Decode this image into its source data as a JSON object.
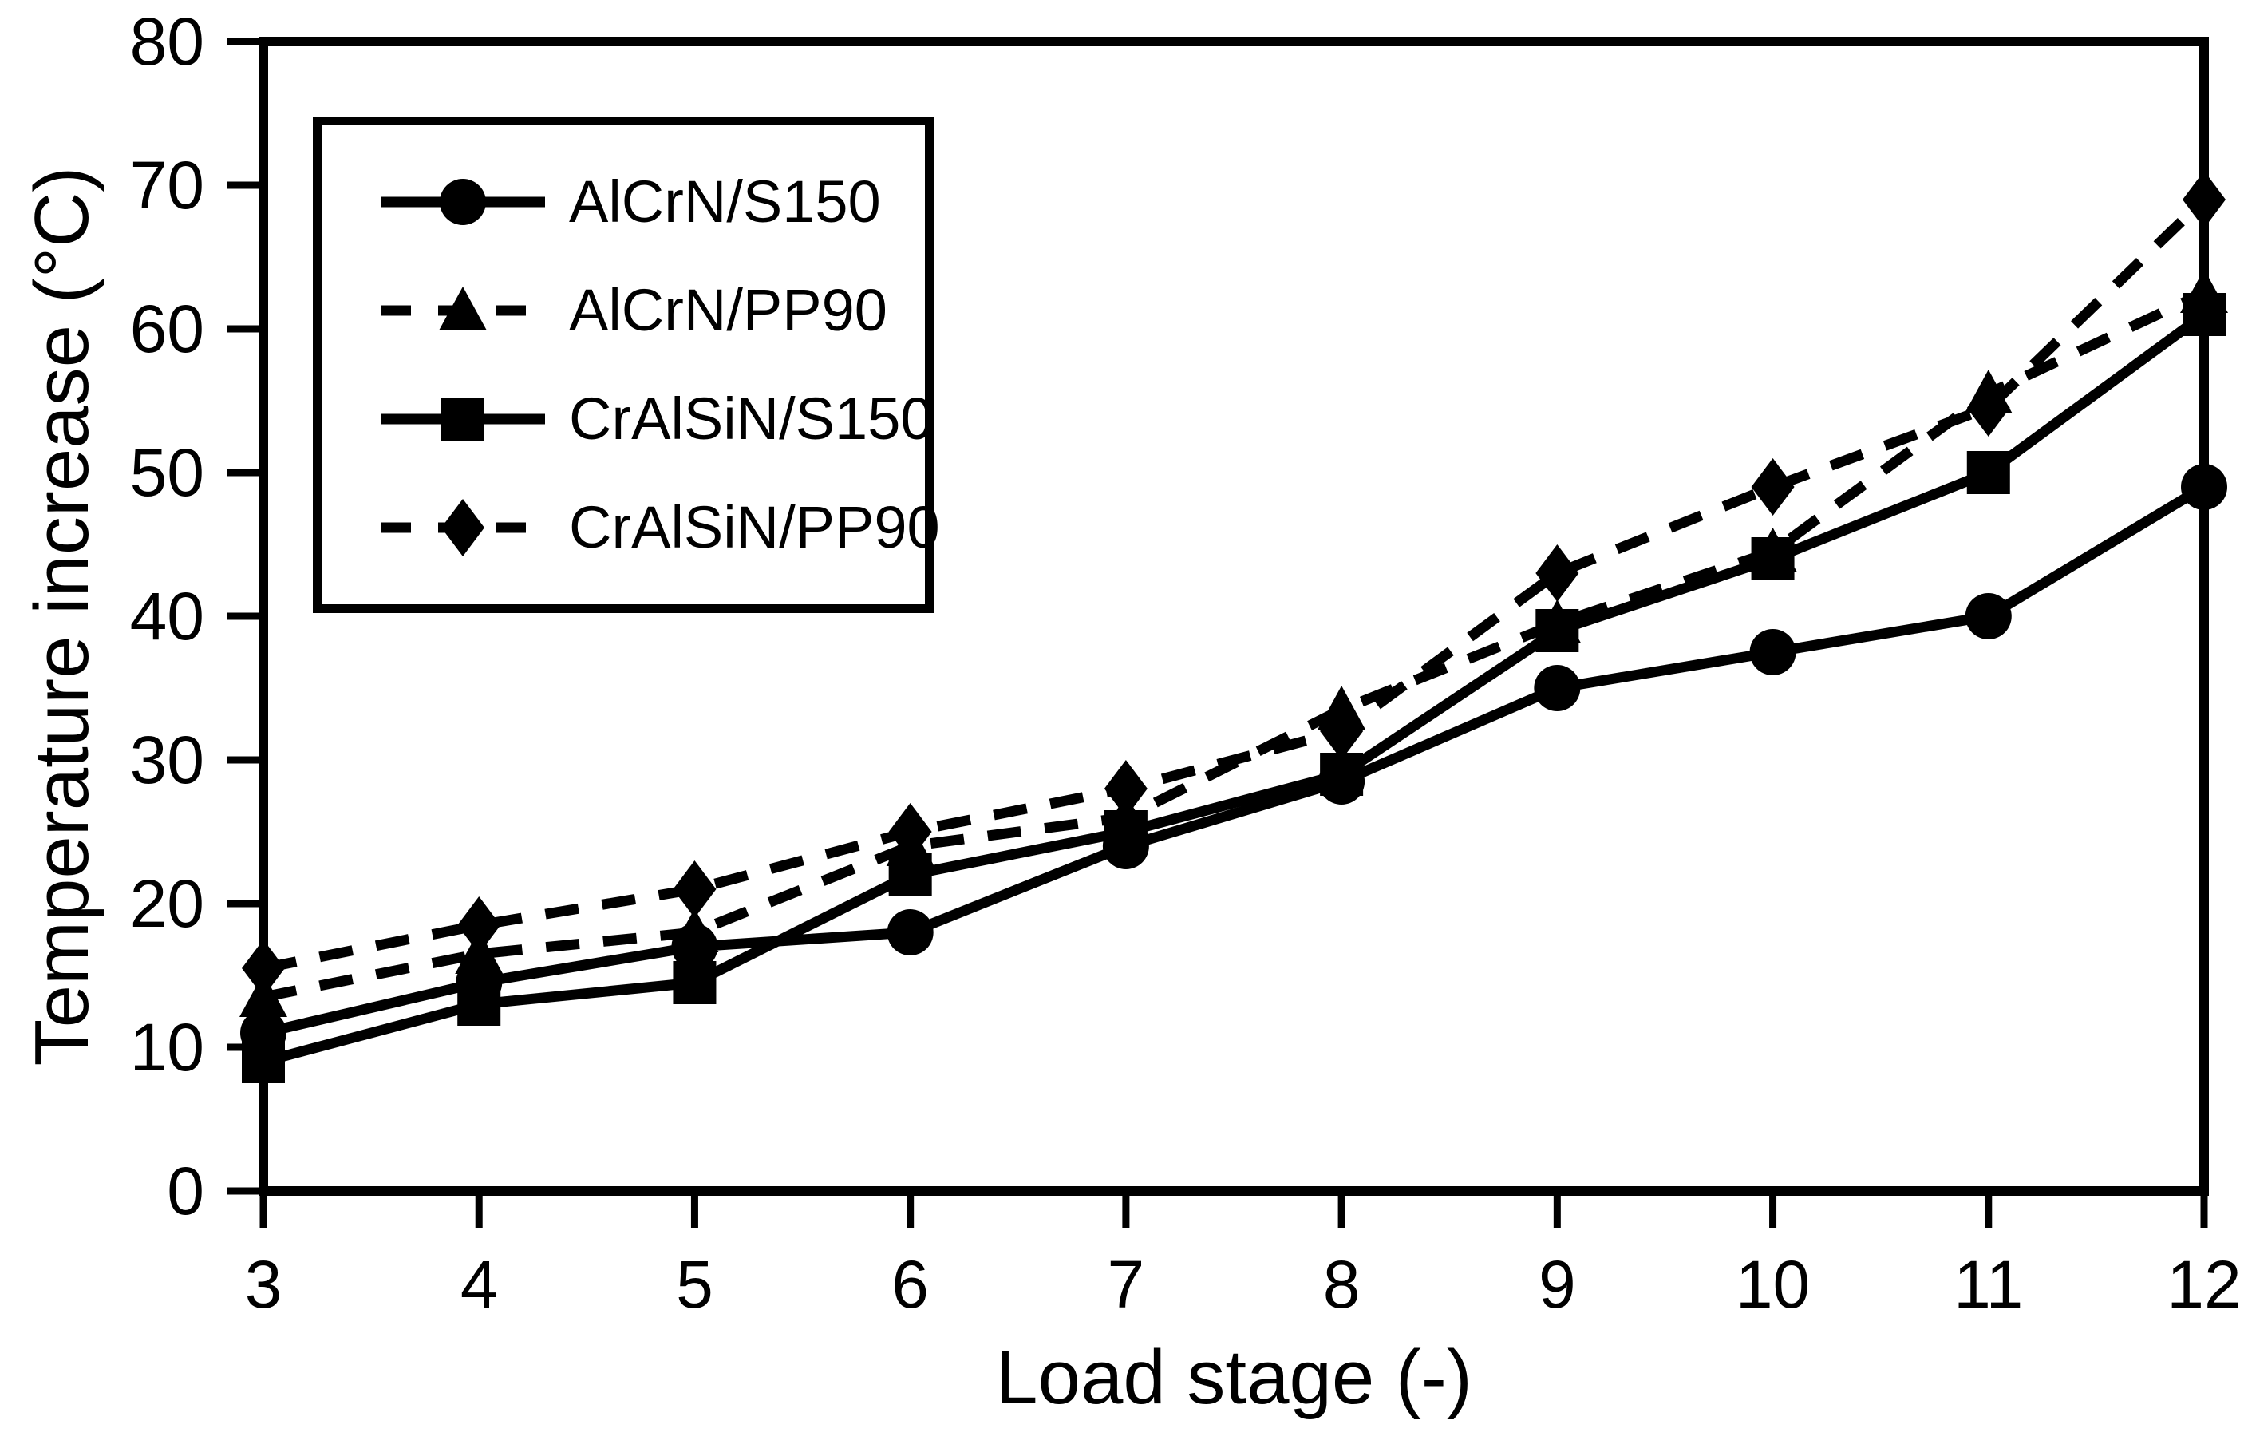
{
  "figure": {
    "background_color": "#ffffff",
    "ink_color": "#000000"
  },
  "chart_data": {
    "type": "line",
    "title": "",
    "xlabel": "Load stage (-)",
    "ylabel": "Temperature increase (°C)",
    "xlim": [
      3,
      12
    ],
    "ylim": [
      0,
      80
    ],
    "xticks": [
      3,
      4,
      5,
      6,
      7,
      8,
      9,
      10,
      11,
      12
    ],
    "yticks": [
      0,
      10,
      20,
      30,
      40,
      50,
      60,
      70,
      80
    ],
    "grid": false,
    "legend_position": "upper-left-inside",
    "x": [
      3,
      4,
      5,
      6,
      7,
      8,
      9,
      10,
      11,
      12
    ],
    "series": [
      {
        "name": "AlCrN/S150",
        "linestyle": "solid",
        "marker": "circle",
        "color": "#000000",
        "values": [
          11,
          14.5,
          17,
          18,
          24,
          28.5,
          35,
          37.5,
          40,
          49
        ]
      },
      {
        "name": "AlCrN/PP90",
        "linestyle": "dashed",
        "marker": "triangle",
        "color": "#000000",
        "values": [
          13.5,
          16.5,
          18,
          24,
          26,
          33.5,
          39.5,
          44.5,
          55.5,
          62.5
        ]
      },
      {
        "name": "CrAlSiN/S150",
        "linestyle": "solid",
        "marker": "square",
        "color": "#000000",
        "values": [
          9,
          13,
          14.5,
          22,
          25,
          29,
          39,
          44,
          50,
          61
        ]
      },
      {
        "name": "CrAlSiN/PP90",
        "linestyle": "dashed",
        "marker": "diamond",
        "color": "#000000",
        "values": [
          15.5,
          18.5,
          21,
          25,
          28,
          32,
          43,
          49,
          54.5,
          69
        ]
      }
    ]
  }
}
